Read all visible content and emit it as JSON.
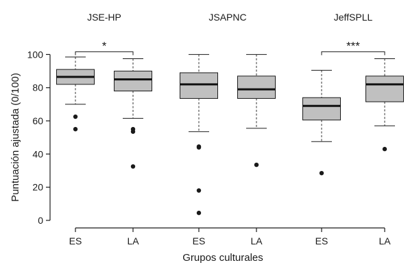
{
  "chart_data": {
    "type": "boxplot",
    "ylabel": "Puntuación ajustada (0/100)",
    "xlabel": "Grupos culturales",
    "ylim": [
      -3,
      112
    ],
    "yticks": [
      0,
      20,
      40,
      60,
      80,
      100
    ],
    "grid": false,
    "legend": "none",
    "box_fill": "#c0c0c0",
    "groups": [
      {
        "title": "JSE-HP",
        "significance": "*"
      },
      {
        "title": "JSAPNC",
        "significance": ""
      },
      {
        "title": "JeffSPLL",
        "significance": "***"
      }
    ],
    "categories": [
      "ES",
      "LA",
      "ES",
      "LA",
      "ES",
      "LA"
    ],
    "boxes": [
      {
        "group": 0,
        "label": "ES",
        "whisker_low": 70,
        "q1": 82,
        "median": 86.5,
        "q3": 91,
        "whisker_high": 98.5,
        "outliers": [
          62.5,
          55
        ]
      },
      {
        "group": 0,
        "label": "LA",
        "whisker_low": 61.5,
        "q1": 78,
        "median": 85,
        "q3": 90,
        "whisker_high": 97.5,
        "outliers": [
          55,
          53.5,
          32.5
        ]
      },
      {
        "group": 1,
        "label": "ES",
        "whisker_low": 53.5,
        "q1": 73.5,
        "median": 82,
        "q3": 89,
        "whisker_high": 100,
        "outliers": [
          44.5,
          44,
          18,
          4.5
        ]
      },
      {
        "group": 1,
        "label": "LA",
        "whisker_low": 55.5,
        "q1": 73.5,
        "median": 79,
        "q3": 87,
        "whisker_high": 100,
        "outliers": [
          33.5
        ]
      },
      {
        "group": 2,
        "label": "ES",
        "whisker_low": 47.5,
        "q1": 60.5,
        "median": 69,
        "q3": 74,
        "whisker_high": 90.5,
        "outliers": [
          28.5
        ]
      },
      {
        "group": 2,
        "label": "LA",
        "whisker_low": 57,
        "q1": 71.5,
        "median": 82,
        "q3": 87,
        "whisker_high": 97.5,
        "outliers": [
          43
        ]
      }
    ],
    "brackets": [
      {
        "from": 0,
        "to": 1,
        "y": 105,
        "label": "*"
      },
      {
        "from": 4,
        "to": 5,
        "y": 105,
        "label": "***"
      }
    ]
  }
}
